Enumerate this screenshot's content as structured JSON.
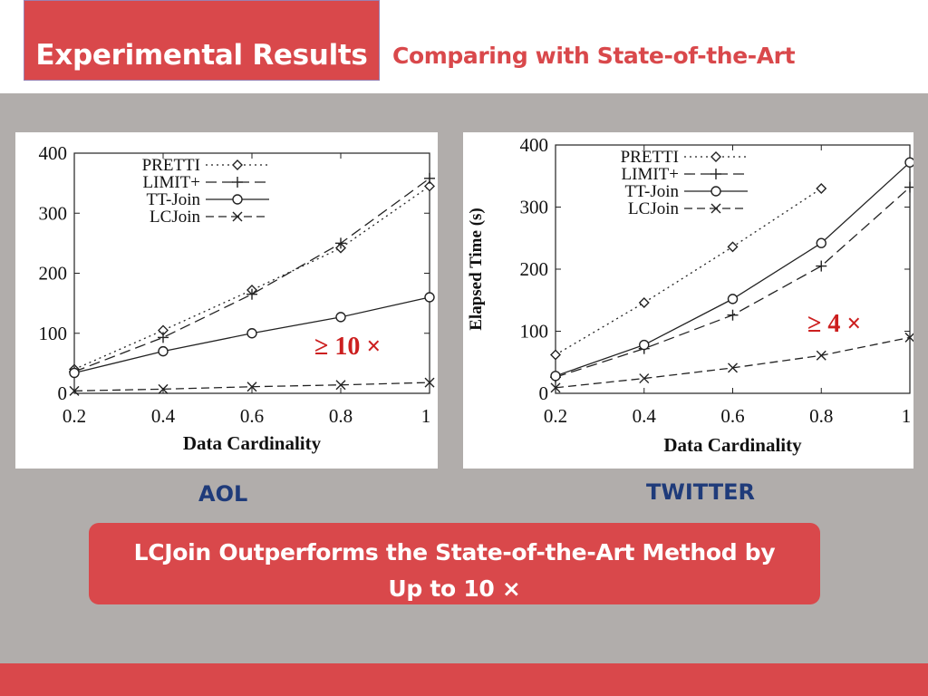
{
  "header": {
    "title": "Experimental Results",
    "subtitle": "Comparing with State-of-the-Art"
  },
  "captions": {
    "left": "AOL",
    "right": "TWITTER"
  },
  "conclusion": {
    "line1": "LCJoin Outperforms the State-of-the-Art Method by",
    "line2": "Up to 10 ×"
  },
  "colors": {
    "accent": "#d9484b",
    "content_bg": "#b1adab",
    "caption": "#1f3b7a",
    "annotation": "#cc1f1f"
  },
  "chart_data": [
    {
      "type": "line",
      "xlabel": "Data Cardinality",
      "ylabel": "",
      "xlim": [
        0.2,
        1
      ],
      "ylim": [
        0,
        400
      ],
      "xticks": [
        "0.2",
        "0.4",
        "0.6",
        "0.8",
        "1"
      ],
      "yticks": [
        "0",
        "100",
        "200",
        "300",
        "400"
      ],
      "legend_placement": "top-left",
      "annotation": "≥ 10 ×",
      "x": [
        0.2,
        0.4,
        0.6,
        0.8,
        1.0
      ],
      "series": [
        {
          "name": "PRETTI",
          "marker": "diamond",
          "dash": "2,4",
          "values": [
            40,
            105,
            172,
            242,
            345
          ]
        },
        {
          "name": "LIMIT+",
          "marker": "plus",
          "dash": "12,6",
          "values": [
            36,
            93,
            165,
            250,
            358
          ]
        },
        {
          "name": "TT-Join",
          "marker": "circle",
          "dash": "",
          "values": [
            34,
            70,
            100,
            127,
            160
          ]
        },
        {
          "name": "LCJoin",
          "marker": "cross",
          "dash": "9,5",
          "values": [
            4,
            7,
            11,
            14,
            18
          ]
        }
      ]
    },
    {
      "type": "line",
      "xlabel": "Data Cardinality",
      "ylabel": "Elapsed Time (s)",
      "xlim": [
        0.2,
        1
      ],
      "ylim": [
        0,
        400
      ],
      "xticks": [
        "0.2",
        "0.4",
        "0.6",
        "0.8",
        "1"
      ],
      "yticks": [
        "0",
        "100",
        "200",
        "300",
        "400"
      ],
      "legend_placement": "top-left",
      "annotation": "≥ 4 ×",
      "x": [
        0.2,
        0.4,
        0.6,
        0.8,
        1.0
      ],
      "series": [
        {
          "name": "PRETTI",
          "marker": "diamond",
          "dash": "2,4",
          "values": [
            62,
            146,
            236,
            330,
            null
          ]
        },
        {
          "name": "LIMIT+",
          "marker": "plus",
          "dash": "12,6",
          "values": [
            26,
            72,
            126,
            205,
            332
          ]
        },
        {
          "name": "TT-Join",
          "marker": "circle",
          "dash": "",
          "values": [
            28,
            78,
            152,
            242,
            372
          ]
        },
        {
          "name": "LCJoin",
          "marker": "cross",
          "dash": "9,5",
          "values": [
            9,
            24,
            41,
            61,
            90
          ]
        }
      ]
    }
  ]
}
